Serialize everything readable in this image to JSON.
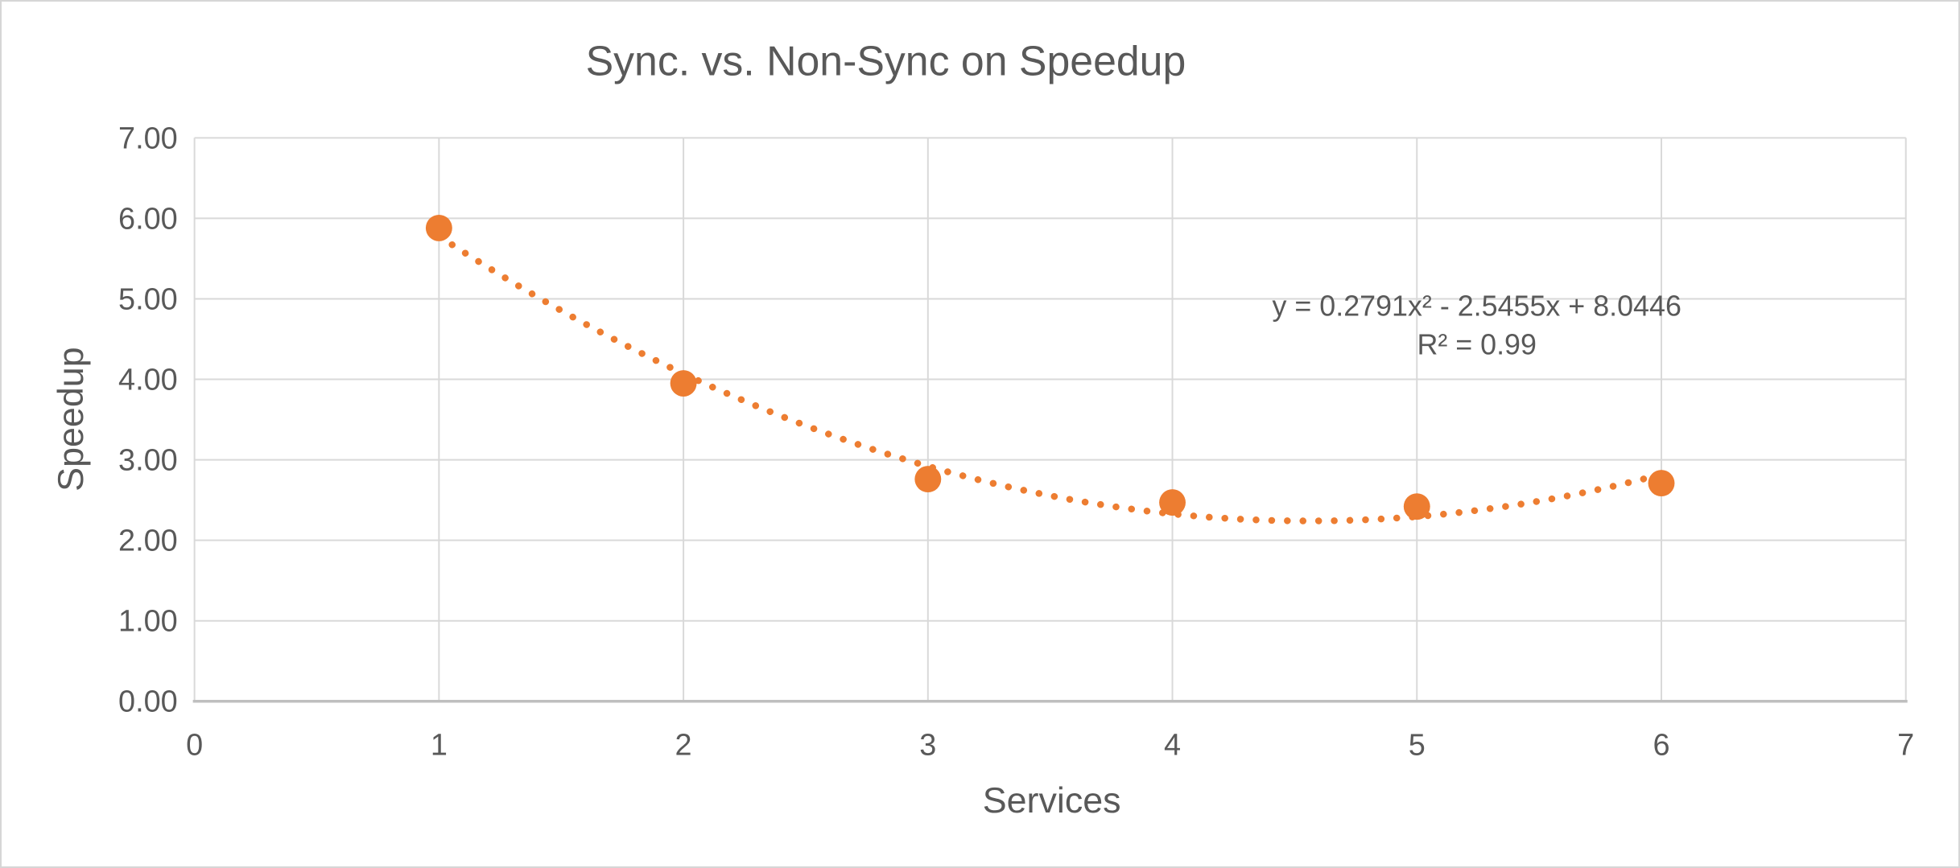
{
  "chart_data": {
    "type": "scatter",
    "title": "Sync. vs. Non-Sync on Speedup",
    "xlabel": "Services",
    "ylabel": "Speedup",
    "x": [
      1,
      2,
      3,
      4,
      5,
      6
    ],
    "y": [
      5.88,
      3.95,
      2.76,
      2.47,
      2.42,
      2.71
    ],
    "xlim": [
      0,
      7
    ],
    "ylim": [
      0,
      7
    ],
    "x_ticks": [
      "0",
      "1",
      "2",
      "3",
      "4",
      "5",
      "6",
      "7"
    ],
    "y_ticks": [
      "0.00",
      "1.00",
      "2.00",
      "3.00",
      "4.00",
      "5.00",
      "6.00",
      "7.00"
    ],
    "grid": true,
    "legend": "none",
    "trendline": {
      "type": "polynomial",
      "order": 2,
      "coefficients": {
        "a": 0.2791,
        "b": -2.5455,
        "c": 8.0446
      },
      "equation_label": "y = 0.2791x² - 2.5455x + 8.0446",
      "r_squared_label": "R² = 0.99",
      "x_range": [
        1,
        6
      ],
      "style": "round-dot"
    },
    "colors": {
      "marker": "#ED7D31",
      "trendline": "#ED7D31",
      "gridline": "#D9D9D9",
      "axis_line": "#BFBFBF",
      "text": "#595959",
      "background": "#FFFFFF",
      "frame_border": "#D6D6D6"
    }
  }
}
